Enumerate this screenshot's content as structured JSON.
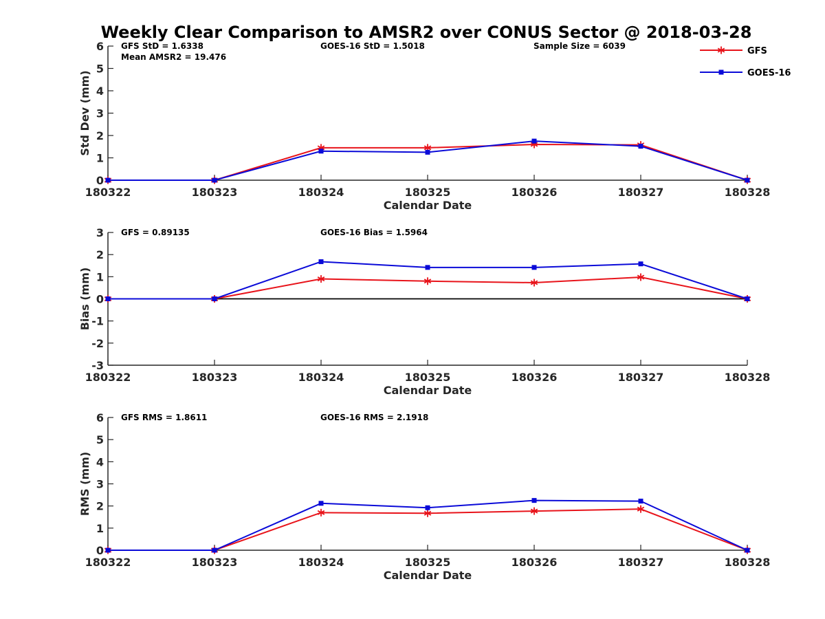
{
  "figure": {
    "title": "Weekly Clear Comparison to AMSR2 over CONUS Sector @ 2018-03-28"
  },
  "legend": {
    "entries": [
      {
        "name": "GFS",
        "color": "#e8131a",
        "marker": "asterisk"
      },
      {
        "name": "GOES-16",
        "color": "#0a0ad8",
        "marker": "square"
      }
    ]
  },
  "chart_data": [
    {
      "type": "line",
      "title": "",
      "xlabel": "Calendar Date",
      "ylabel": "Std Dev (mm)",
      "categories": [
        "180322",
        "180323",
        "180324",
        "180325",
        "180326",
        "180327",
        "180328"
      ],
      "ylim": [
        0,
        6
      ],
      "yticks": [
        "0",
        "1",
        "2",
        "3",
        "4",
        "5",
        "6"
      ],
      "zero_line": false,
      "series": [
        {
          "name": "GFS",
          "color": "#e8131a",
          "marker": "asterisk",
          "values": [
            0,
            0,
            1.45,
            1.45,
            1.6,
            1.58,
            0
          ]
        },
        {
          "name": "GOES-16",
          "color": "#0a0ad8",
          "marker": "square",
          "values": [
            0,
            0,
            1.3,
            1.25,
            1.75,
            1.52,
            0
          ]
        }
      ],
      "annotations": [
        {
          "text": "GFS StD = 1.6338",
          "pos": "left"
        },
        {
          "text": "Mean AMSR2 = 19.476",
          "pos": "left-2"
        },
        {
          "text": "GOES-16 StD = 1.5018",
          "pos": "middle"
        },
        {
          "text": "Sample Size = 6039",
          "pos": "right"
        }
      ]
    },
    {
      "type": "line",
      "title": "",
      "xlabel": "Calendar Date",
      "ylabel": "Bias (mm)",
      "categories": [
        "180322",
        "180323",
        "180324",
        "180325",
        "180326",
        "180327",
        "180328"
      ],
      "ylim": [
        -3,
        3
      ],
      "yticks": [
        "-3",
        "-2",
        "-1",
        "0",
        "1",
        "2",
        "3"
      ],
      "zero_line": true,
      "series": [
        {
          "name": "GFS",
          "color": "#e8131a",
          "marker": "asterisk",
          "values": [
            0,
            0,
            0.9,
            0.8,
            0.73,
            0.98,
            0
          ]
        },
        {
          "name": "GOES-16",
          "color": "#0a0ad8",
          "marker": "square",
          "values": [
            0,
            0,
            1.68,
            1.42,
            1.42,
            1.58,
            0
          ]
        }
      ],
      "annotations": [
        {
          "text": "GFS = 0.89135",
          "pos": "left"
        },
        {
          "text": "GOES-16 Bias  = 1.5964",
          "pos": "middle"
        }
      ]
    },
    {
      "type": "line",
      "title": "",
      "xlabel": "Calendar Date",
      "ylabel": "RMS (mm)",
      "categories": [
        "180322",
        "180323",
        "180324",
        "180325",
        "180326",
        "180327",
        "180328"
      ],
      "ylim": [
        0,
        6
      ],
      "yticks": [
        "0",
        "1",
        "2",
        "3",
        "4",
        "5",
        "6"
      ],
      "zero_line": false,
      "series": [
        {
          "name": "GFS",
          "color": "#e8131a",
          "marker": "asterisk",
          "values": [
            0,
            0,
            1.7,
            1.67,
            1.77,
            1.86,
            0
          ]
        },
        {
          "name": "GOES-16",
          "color": "#0a0ad8",
          "marker": "square",
          "values": [
            0,
            0,
            2.12,
            1.92,
            2.25,
            2.22,
            0
          ]
        }
      ],
      "annotations": [
        {
          "text": "GFS RMS = 1.8611",
          "pos": "left"
        },
        {
          "text": "GOES-16 RMS = 2.1918",
          "pos": "middle"
        }
      ]
    }
  ]
}
